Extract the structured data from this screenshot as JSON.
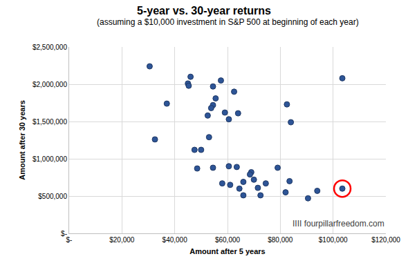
{
  "chart_data": {
    "type": "scatter",
    "title": "5-year vs. 30-year returns",
    "subtitle": "(assuming a $10,000 investment in S&P 500 at beginning of each year)",
    "x_label": "Amount after 5 years",
    "y_label": "Amount after 30 years",
    "annotations": [
      "IIII fourpillarfreedom.com"
    ],
    "grid": true,
    "xlim": [
      0,
      120000
    ],
    "xticks": [
      {
        "value": 0,
        "label": "$-"
      },
      {
        "value": 20000,
        "label": "$20,000"
      },
      {
        "value": 40000,
        "label": "$40,000"
      },
      {
        "value": 60000,
        "label": "$60,000"
      },
      {
        "value": 80000,
        "label": "$80,000"
      },
      {
        "value": 100000,
        "label": "$100,000"
      },
      {
        "value": 120000,
        "label": "$120,000"
      }
    ],
    "ylim": [
      0,
      2500000
    ],
    "yticks": [
      {
        "value": 0,
        "label": "$-"
      },
      {
        "value": 500000,
        "label": "$500,000"
      },
      {
        "value": 1000000,
        "label": "$1,000,000"
      },
      {
        "value": 1500000,
        "label": "$1,500,000"
      },
      {
        "value": 2000000,
        "label": "$2,000,000"
      },
      {
        "value": 2500000,
        "label": "$2,500,000"
      }
    ],
    "series": [
      {
        "color": "#2e5597",
        "marker": "circle",
        "x": [
          30500,
          46000,
          45000,
          45300,
          57500,
          54500,
          62500,
          55500,
          37000,
          54500,
          53800,
          59000,
          64000,
          52500,
          60500,
          82500,
          84000,
          103500,
          32500,
          53000,
          47500,
          50000,
          60500,
          63500,
          48500,
          54500,
          79000,
          69000,
          68500,
          70000,
          66000,
          83500,
          58000,
          74500,
          61000,
          71500,
          64500,
          94000,
          82000,
          66000,
          72500,
          90500,
          103500
        ],
        "values": [
          2240000,
          2100000,
          2010000,
          1980000,
          2050000,
          1970000,
          1900000,
          1810000,
          1740000,
          1720000,
          1680000,
          1620000,
          1610000,
          1580000,
          1530000,
          1730000,
          1490000,
          2080000,
          1260000,
          1290000,
          1120000,
          1120000,
          900000,
          890000,
          870000,
          880000,
          880000,
          820000,
          790000,
          720000,
          690000,
          700000,
          670000,
          670000,
          650000,
          610000,
          600000,
          570000,
          550000,
          510000,
          510000,
          470000,
          600000
        ]
      },
      {
        "color": "#ff0000",
        "marker": "circle-open",
        "x": [
          103500
        ],
        "values": [
          600000
        ]
      }
    ]
  }
}
